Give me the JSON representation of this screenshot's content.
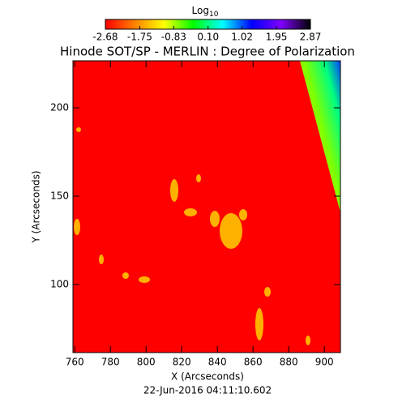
{
  "chart_data": {
    "type": "image",
    "title": "Hinode SOT/SP - MERLIN : Degree of Polarization",
    "colorbar_label": "Log",
    "colorbar_label_sub": "10",
    "colorbar_lim": [
      -2.68,
      2.87
    ],
    "colorbar_ticks": [
      -2.68,
      -1.75,
      -0.83,
      {
        "value": 0.1,
        "label": "0.10"
      },
      1.02,
      1.95,
      2.87
    ],
    "colormap": [
      "#ff0000",
      "#ff8000",
      "#ffff00",
      "#00ff00",
      "#00ffff",
      "#0000ff",
      "#8000ff",
      "#000000"
    ],
    "xlabel": "X (Arcseconds)",
    "ylabel": "Y (Arcseconds)",
    "xlim": [
      759,
      909
    ],
    "ylim": [
      61.5,
      226.6
    ],
    "xticks": [
      760,
      780,
      800,
      820,
      840,
      860,
      880,
      900
    ],
    "yticks": [
      100,
      150,
      200
    ],
    "footer": "22-Jun-2016 04:11:10.602"
  }
}
